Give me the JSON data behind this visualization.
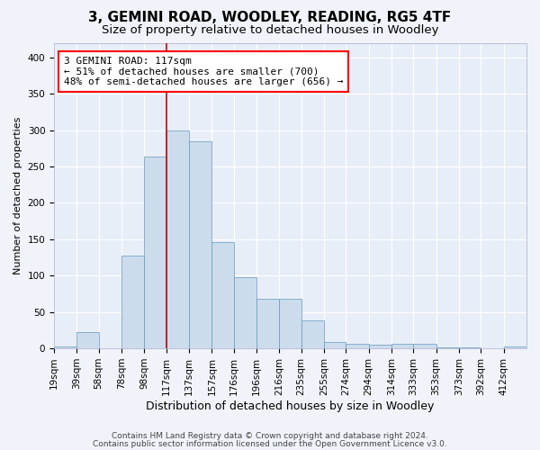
{
  "title": "3, GEMINI ROAD, WOODLEY, READING, RG5 4TF",
  "subtitle": "Size of property relative to detached houses in Woodley",
  "xlabel": "Distribution of detached houses by size in Woodley",
  "ylabel": "Number of detached properties",
  "footer1": "Contains HM Land Registry data © Crown copyright and database right 2024.",
  "footer2": "Contains public sector information licensed under the Open Government Licence v3.0.",
  "annotation_line1": "3 GEMINI ROAD: 117sqm",
  "annotation_line2": "← 51% of detached houses are smaller (700)",
  "annotation_line3": "48% of semi-detached houses are larger (656) →",
  "bar_color": "#ccdcec",
  "bar_edge_color": "#6699bb",
  "vline_color": "#cc0000",
  "vline_x": 117,
  "bins": [
    19,
    39,
    58,
    78,
    98,
    117,
    137,
    157,
    176,
    196,
    216,
    235,
    255,
    274,
    294,
    314,
    333,
    353,
    373,
    392,
    412
  ],
  "values": [
    2,
    22,
    0,
    127,
    263,
    300,
    285,
    146,
    98,
    68,
    68,
    38,
    9,
    6,
    5,
    6,
    6,
    1,
    1,
    0,
    2
  ],
  "ylim": [
    0,
    420
  ],
  "yticks": [
    0,
    50,
    100,
    150,
    200,
    250,
    300,
    350,
    400
  ],
  "background_color": "#f0f4fa",
  "plot_bg_color": "#e8eef8",
  "grid_color": "#ffffff",
  "title_fontsize": 11,
  "subtitle_fontsize": 9.5,
  "xlabel_fontsize": 9,
  "ylabel_fontsize": 8,
  "tick_fontsize": 7.5,
  "annotation_fontsize": 8
}
